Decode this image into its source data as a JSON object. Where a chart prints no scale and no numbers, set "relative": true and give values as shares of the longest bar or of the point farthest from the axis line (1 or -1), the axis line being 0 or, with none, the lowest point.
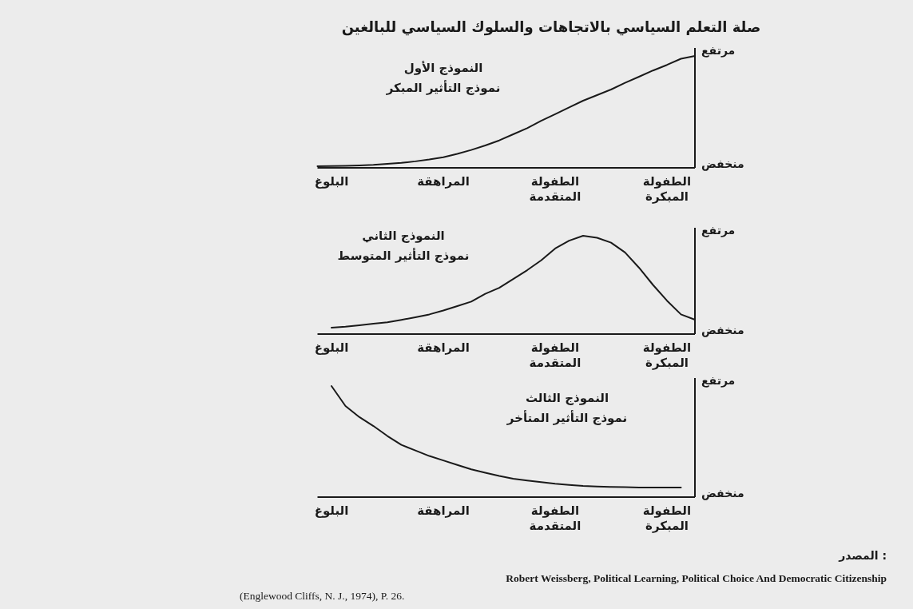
{
  "chart_data": [
    {
      "type": "line",
      "title": "النموذج الأول",
      "subtitle": "نموذج التأثير المبكر",
      "relative": true,
      "categories": [
        null,
        "البلوغ",
        null,
        null,
        null,
        null,
        null,
        null,
        null,
        "المراهقة",
        null,
        null,
        null,
        null,
        null,
        null,
        null,
        "الطفولة\nالمتقدمة",
        null,
        null,
        null,
        null,
        null,
        null,
        null,
        "الطفولة\nالمبكرة",
        null,
        null
      ],
      "series": [
        {
          "color": "#1a1a1a",
          "values": [
            0.014,
            0.016,
            0.018,
            0.021,
            0.026,
            0.035,
            0.044,
            0.058,
            0.075,
            0.095,
            0.125,
            0.16,
            0.2,
            0.245,
            0.3,
            0.355,
            0.42,
            0.48,
            0.54,
            0.6,
            0.65,
            0.7,
            0.76,
            0.814,
            0.87,
            0.92,
            0.975,
            1
          ]
        }
      ],
      "annotations": [
        "مرتفع",
        "منخفض",
        "صلة التعلم السياسي بالاتجاهات والسلوك السياسي للبالغين"
      ]
    },
    {
      "type": "line",
      "title": "النموذج الثاني",
      "subtitle": "نموذج التأثير المتوسط",
      "relative": true,
      "categories": [
        null,
        "البلوغ",
        null,
        null,
        null,
        null,
        null,
        null,
        null,
        "المراهقة",
        null,
        null,
        null,
        null,
        null,
        null,
        null,
        "الطفولة\nالمتقدمة",
        null,
        null,
        null,
        null,
        null,
        null,
        null,
        "الطفولة\nالمبكرة",
        null,
        null
      ],
      "series": [
        {
          "color": "#1a1a1a",
          "values": [
            null,
            0.065,
            0.075,
            0.09,
            0.105,
            0.12,
            0.145,
            0.171,
            0.2,
            0.24,
            0.285,
            0.33,
            0.41,
            0.47,
            0.56,
            0.65,
            0.75,
            0.87,
            0.95,
            1,
            0.98,
            0.93,
            0.83,
            0.675,
            0.5,
            0.34,
            0.2,
            0.146
          ]
        }
      ],
      "annotations": [
        "مرتفع",
        "منخفض"
      ]
    },
    {
      "type": "line",
      "title": "النموذج الثالث",
      "subtitle": "نموذج التأثير المتأخر",
      "relative": true,
      "categories": [
        null,
        "البلوغ",
        null,
        null,
        null,
        null,
        null,
        null,
        null,
        "المراهقة",
        null,
        null,
        null,
        null,
        null,
        null,
        null,
        "الطفولة\nالمتقدمة",
        null,
        null,
        null,
        null,
        null,
        null,
        null,
        "الطفولة\nالمبكرة",
        null,
        null
      ],
      "series": [
        {
          "color": "#1a1a1a",
          "values": [
            null,
            1,
            0.82,
            0.72,
            0.64,
            0.55,
            0.47,
            0.42,
            0.37,
            0.33,
            0.29,
            0.25,
            0.22,
            0.19,
            0.165,
            0.15,
            0.135,
            0.12,
            0.11,
            0.1,
            0.095,
            0.092,
            0.09,
            0.086,
            0.086,
            0.086,
            0.086,
            null
          ]
        }
      ],
      "annotations": [
        "مرتفع",
        "منخفض",
        "المصدر :",
        "Robert Weissberg, Political Learning, Political Choice And Democratic Citizenship",
        "(Englewood Cliffs, N. J., 1974), P. 26."
      ]
    }
  ]
}
